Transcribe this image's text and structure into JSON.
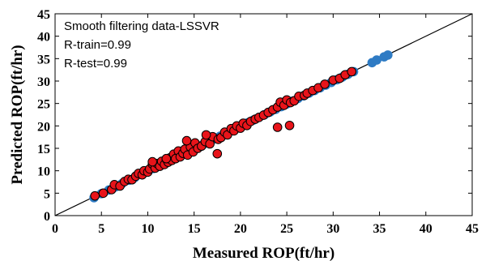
{
  "chart_data": {
    "type": "scatter",
    "title": "",
    "xlabel": "Measured ROP(ft/hr)",
    "ylabel": "Predicted ROP(ft/hr)",
    "xlim": [
      0,
      45
    ],
    "ylim": [
      0,
      45
    ],
    "xticks": [
      0,
      5,
      10,
      15,
      20,
      25,
      30,
      35,
      40,
      45
    ],
    "yticks": [
      0,
      5,
      10,
      15,
      20,
      25,
      30,
      35,
      40,
      45
    ],
    "grid": false,
    "legend": "none",
    "annotations": [
      "Smooth filtering data-LSSVR",
      "R-train=0.99",
      "R-test=0.99"
    ],
    "reference_line": {
      "type": "y=x",
      "from": [
        0,
        0
      ],
      "to": [
        45,
        45
      ]
    },
    "series": [
      {
        "color": "#2e7bc4",
        "marker": "circle",
        "x": [
          4.2,
          5.0,
          5.8,
          6.5,
          7.2,
          8.0,
          8.6,
          9.3,
          10.0,
          10.6,
          11.2,
          11.8,
          12.4,
          13.0,
          13.6,
          14.2,
          14.8,
          15.4,
          16.0,
          16.6,
          17.2,
          17.8,
          18.4,
          19.0,
          19.6,
          20.2,
          20.8,
          21.4,
          22.0,
          22.6,
          23.2,
          23.8,
          24.4,
          25.0,
          25.6,
          26.2,
          26.8,
          27.4,
          28.0,
          28.6,
          29.2,
          29.8,
          30.4,
          31.0,
          31.6,
          32.2,
          34.2,
          34.7,
          35.5,
          35.9
        ],
        "y": [
          4.0,
          4.9,
          5.7,
          6.4,
          7.1,
          7.9,
          8.5,
          9.2,
          9.9,
          10.5,
          11.1,
          11.7,
          12.3,
          12.9,
          13.5,
          14.1,
          14.7,
          15.3,
          15.9,
          16.5,
          17.1,
          17.7,
          18.3,
          18.9,
          19.5,
          20.1,
          20.7,
          21.3,
          21.9,
          22.5,
          23.1,
          23.7,
          24.3,
          24.9,
          25.5,
          26.1,
          26.7,
          27.3,
          27.9,
          28.5,
          29.1,
          29.7,
          30.3,
          30.9,
          31.5,
          32.1,
          34.1,
          34.7,
          35.4,
          35.8
        ]
      },
      {
        "color": "#e8141a",
        "marker": "circle",
        "x": [
          4.3,
          5.2,
          6.1,
          6.4,
          7.0,
          7.5,
          7.9,
          8.3,
          8.7,
          9.0,
          9.4,
          9.6,
          10.0,
          10.2,
          10.5,
          10.8,
          11.0,
          11.3,
          11.5,
          11.8,
          12.0,
          12.2,
          12.4,
          12.6,
          12.8,
          13.0,
          13.3,
          13.5,
          13.8,
          14.0,
          14.3,
          14.6,
          14.9,
          15.1,
          15.4,
          15.8,
          16.2,
          16.7,
          17.0,
          17.5,
          17.6,
          17.9,
          18.3,
          18.6,
          19.0,
          19.3,
          19.6,
          20.0,
          20.3,
          20.7,
          21.1,
          21.6,
          22.0,
          22.5,
          23.0,
          23.5,
          24.0,
          24.3,
          24.7,
          25.0,
          25.4,
          25.8,
          26.3,
          26.9,
          27.2,
          27.8,
          28.4,
          29.1,
          30.0,
          30.7,
          31.3,
          32.0,
          24.0,
          25.3,
          10.5,
          12.0,
          14.2,
          16.3
        ],
        "y": [
          4.4,
          5.0,
          5.8,
          6.9,
          6.6,
          7.6,
          8.1,
          8.0,
          8.8,
          9.4,
          9.1,
          10.0,
          9.7,
          10.4,
          11.5,
          10.6,
          11.6,
          11.0,
          12.1,
          11.4,
          12.6,
          11.9,
          12.9,
          12.3,
          13.7,
          12.7,
          14.4,
          13.1,
          13.9,
          14.8,
          13.5,
          15.3,
          14.2,
          16.2,
          15.0,
          15.5,
          16.5,
          16.0,
          17.6,
          13.8,
          17.0,
          17.4,
          18.6,
          18.0,
          19.4,
          18.9,
          20.0,
          19.5,
          20.6,
          20.1,
          21.0,
          21.5,
          21.9,
          22.4,
          23.0,
          23.6,
          24.2,
          25.3,
          24.6,
          25.8,
          25.2,
          25.6,
          26.6,
          26.8,
          27.3,
          27.9,
          28.5,
          29.3,
          30.2,
          30.6,
          31.4,
          32.1,
          19.7,
          20.1,
          12.0,
          12.7,
          16.7,
          18.0
        ]
      }
    ]
  }
}
